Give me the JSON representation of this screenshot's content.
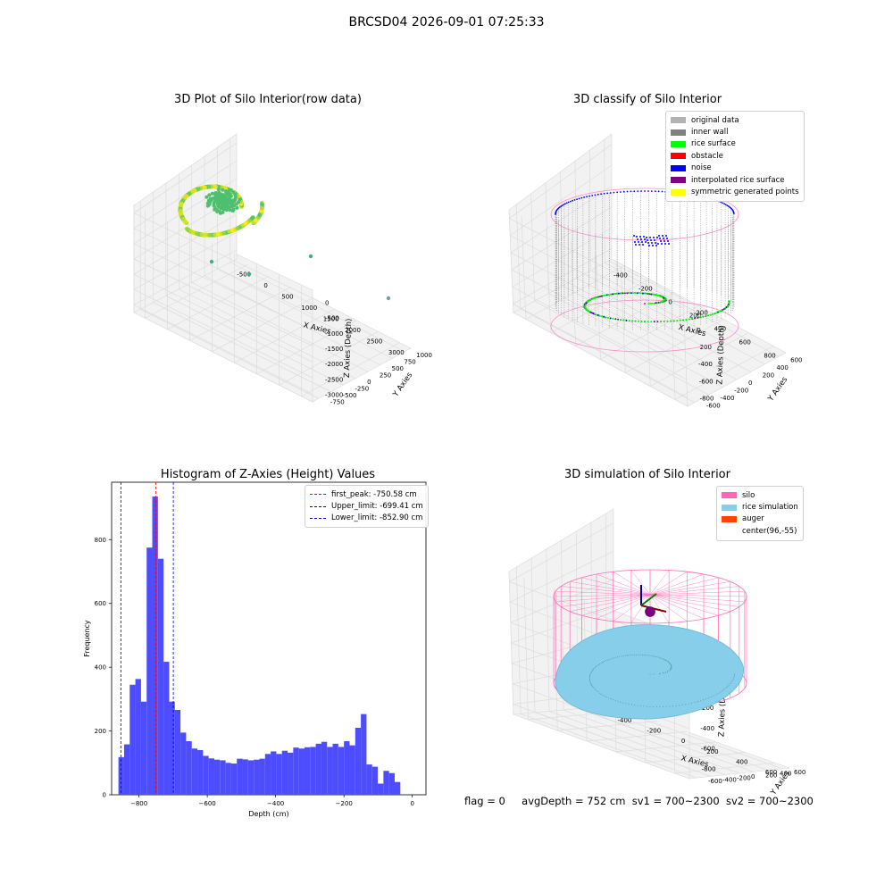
{
  "figure": {
    "suptitle": "BRCSD04 2026-09-01 07:25:33",
    "footer": {
      "flag": "flag = 0",
      "avg_depth": "avgDepth = 752 cm",
      "sv1": "sv1 = 700~2300",
      "sv2": "sv2 = 700~2300"
    }
  },
  "chart_data": [
    {
      "type": "scatter",
      "title": "3D Plot of Silo Interior(row data)",
      "xlabel": "X Axies",
      "ylabel": "Y Axies",
      "zlabel": "Z Axies (Depth)",
      "x_ticks": [
        "-500",
        "0",
        "500",
        "1000",
        "1500",
        "2000",
        "2500",
        "3000"
      ],
      "y_ticks": [
        "-750",
        "-500",
        "-250",
        "0",
        "250",
        "500",
        "750",
        "1000"
      ],
      "z_ticks": [
        "0",
        "-500",
        "-1000",
        "-1500",
        "-2000",
        "-2500",
        "-3000"
      ],
      "colormap": "viridis",
      "outlier_points": [
        {
          "x": 0,
          "y": -200,
          "z": -2300
        },
        {
          "x": 600,
          "y": -400,
          "z": -2600
        },
        {
          "x": 1900,
          "y": 200,
          "z": -2100
        },
        {
          "x": 3000,
          "y": 900,
          "z": -3000
        }
      ]
    },
    {
      "type": "scatter",
      "title": "3D classify of Silo Interior",
      "xlabel": "X Axies",
      "ylabel": "Y Axies",
      "zlabel": "Z Axies (Depth)",
      "x_ticks": [
        "-400",
        "-200",
        "0",
        "200",
        "400",
        "600",
        "800"
      ],
      "y_ticks": [
        "-600",
        "-400",
        "-200",
        "0",
        "200",
        "400",
        "600"
      ],
      "z_ticks": [
        "200",
        "0",
        "-200",
        "-400",
        "-600",
        "-800"
      ],
      "legend": [
        {
          "label": "original data",
          "color": "#b3b3b3"
        },
        {
          "label": "inner wall",
          "color": "#808080"
        },
        {
          "label": "rice surface",
          "color": "#00ff00"
        },
        {
          "label": "obstacle",
          "color": "#ff0000"
        },
        {
          "label": "noise",
          "color": "#0000ff"
        },
        {
          "label": "interpolated rice surface",
          "color": "#800080"
        },
        {
          "label": "symmetric generated points",
          "color": "#ffff00"
        }
      ]
    },
    {
      "type": "bar",
      "title": "Histogram of Z-Axies (Height) Values",
      "xlabel": "Depth (cm)",
      "ylabel": "Frequency",
      "xlim": [
        -880,
        40
      ],
      "ylim": [
        0,
        980
      ],
      "x_ticks": [
        -800,
        -600,
        -400,
        -200,
        0
      ],
      "y_ticks": [
        0,
        200,
        400,
        600,
        800
      ],
      "bar_color": "#4d4dff",
      "bin_width": 16.5,
      "bin_start": -860,
      "values": [
        118,
        158,
        345,
        363,
        292,
        775,
        935,
        740,
        417,
        292,
        266,
        195,
        168,
        145,
        140,
        122,
        114,
        110,
        108,
        100,
        98,
        113,
        111,
        108,
        110,
        113,
        128,
        136,
        128,
        138,
        132,
        148,
        145,
        149,
        150,
        160,
        166,
        150,
        160,
        150,
        168,
        155,
        210,
        253,
        95,
        88,
        35,
        75,
        68,
        40
      ],
      "lines": [
        {
          "label": "first_peak: -750.58 cm",
          "value": -750.58,
          "color": "#ff0000"
        },
        {
          "label": "Upper_limit: -699.41 cm",
          "value": -699.41,
          "color": "#0000cc"
        },
        {
          "label": "Lower_limit: -852.90 cm",
          "value": -852.9,
          "color": "#0000cc"
        }
      ]
    },
    {
      "type": "scatter",
      "title": "3D simulation of Silo Interior",
      "xlabel": "X Axies",
      "ylabel": "Y Axies",
      "zlabel": "Z Axies (Depth)",
      "x_ticks": [
        "-400",
        "-200",
        "0",
        "200",
        "400",
        "600"
      ],
      "y_ticks": [
        "-600",
        "-400",
        "-200",
        "0",
        "200",
        "400",
        "600"
      ],
      "z_ticks": [
        "400",
        "200",
        "0",
        "-200",
        "-400",
        "-600",
        "-800"
      ],
      "legend": [
        {
          "label": "silo",
          "color": "#ff69b4"
        },
        {
          "label": "rice simulation",
          "color": "#87ceeb"
        },
        {
          "label": "auger",
          "color": "#ff4500"
        },
        {
          "label": "center(96,-55)",
          "color": "#ffffff"
        }
      ]
    }
  ]
}
